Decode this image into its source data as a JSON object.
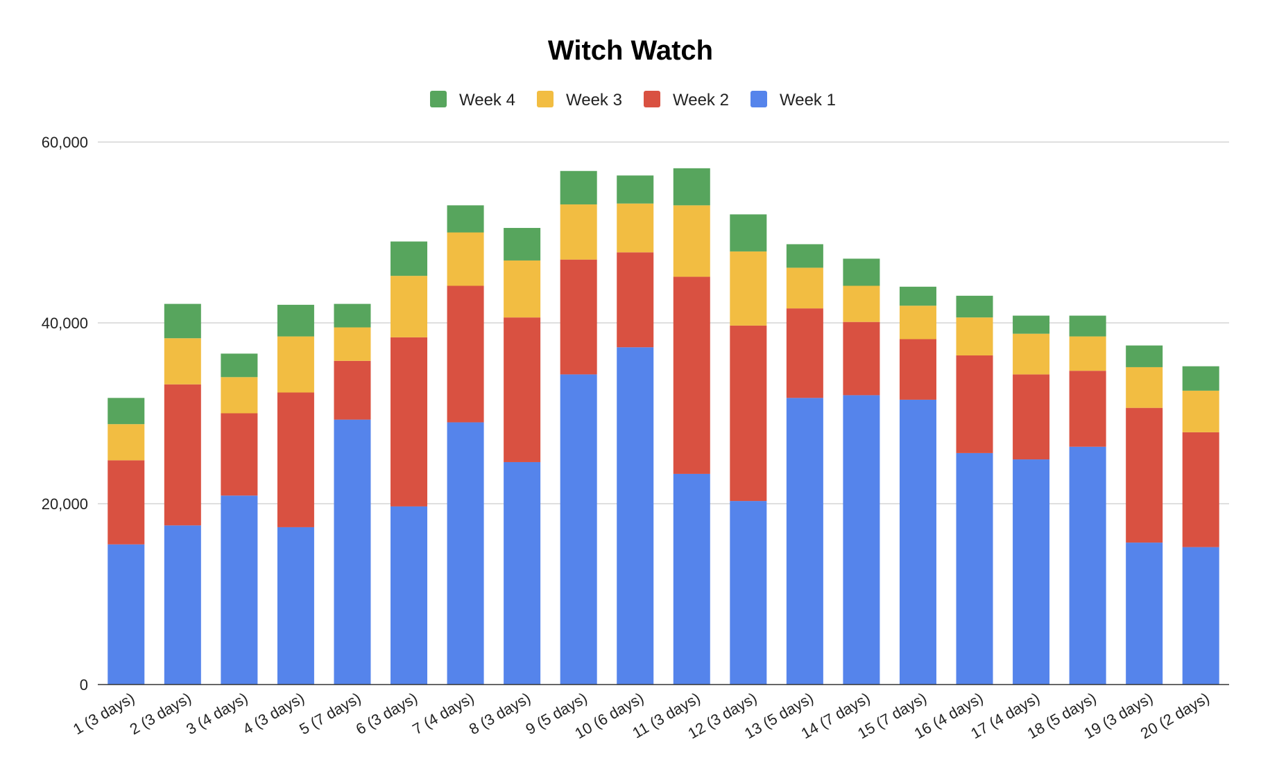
{
  "chart_data": {
    "type": "bar",
    "stacked": true,
    "title": "Witch Watch",
    "xlabel": "",
    "ylabel": "",
    "ylim": [
      0,
      60000
    ],
    "yticks": [
      0,
      20000,
      40000,
      60000
    ],
    "ytick_labels": [
      "0",
      "20,000",
      "40,000",
      "60,000"
    ],
    "grid": true,
    "legend_position": "top",
    "categories": [
      "1 (3 days)",
      "2 (3 days)",
      "3 (4 days)",
      "4 (3 days)",
      "5 (7 days)",
      "6 (3 days)",
      "7 (4 days)",
      "8 (3 days)",
      "9 (5 days)",
      "10 (6 days)",
      "11 (3 days)",
      "12 (3 days)",
      "13 (5 days)",
      "14 (7 days)",
      "15 (7 days)",
      "16 (4 days)",
      "17 (4 days)",
      "18 (5 days)",
      "19 (3 days)",
      "20 (2 days)"
    ],
    "series": [
      {
        "name": "Week 1",
        "color": "#5584eb",
        "values": [
          15500,
          17600,
          20900,
          17400,
          29300,
          19700,
          29000,
          24600,
          34300,
          37300,
          23300,
          20300,
          31700,
          32000,
          31500,
          25600,
          24900,
          26300,
          15700,
          15200
        ]
      },
      {
        "name": "Week 2",
        "color": "#d95141",
        "values": [
          9300,
          15600,
          9100,
          14900,
          6500,
          18700,
          15100,
          16000,
          12700,
          10500,
          21800,
          19400,
          9900,
          8100,
          6700,
          10800,
          9400,
          8400,
          14900,
          12700
        ]
      },
      {
        "name": "Week 3",
        "color": "#f2bd42",
        "values": [
          4000,
          5100,
          4000,
          6200,
          3700,
          6800,
          5900,
          6300,
          6100,
          5400,
          7900,
          8200,
          4500,
          4000,
          3700,
          4200,
          4500,
          3800,
          4500,
          4600
        ]
      },
      {
        "name": "Week 4",
        "color": "#57a55d",
        "values": [
          2900,
          3800,
          2600,
          3500,
          2600,
          3800,
          3000,
          3600,
          3700,
          3100,
          4100,
          4100,
          2600,
          3000,
          2100,
          2400,
          2000,
          2300,
          2400,
          2700
        ]
      }
    ],
    "legend_order": [
      "Week 4",
      "Week 3",
      "Week 2",
      "Week 1"
    ]
  }
}
